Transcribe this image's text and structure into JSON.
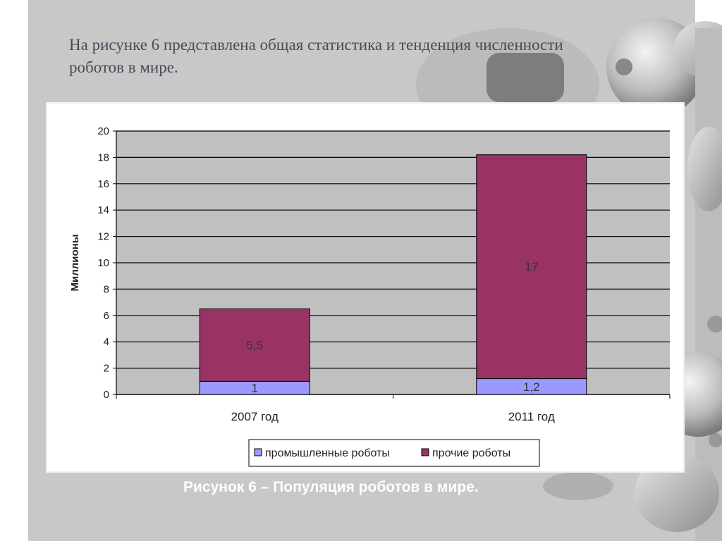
{
  "slide": {
    "intro_text": "На рисунке 6 представлена общая статистика и тенденция численности роботов в мире.",
    "caption": "Рисунок 6 – Популяция роботов в мире."
  },
  "colors": {
    "slide_background": "#c8c8c8",
    "plot_background": "#c0c0c0",
    "industrial": "#9999ff",
    "other": "#993366"
  },
  "chart_data": {
    "type": "bar",
    "stacked": true,
    "categories": [
      "2007 год",
      "2011 год"
    ],
    "series": [
      {
        "name": "промышленные роботы",
        "values": [
          1,
          1.2
        ],
        "labels": [
          "1",
          "1,2"
        ]
      },
      {
        "name": "прочие роботы",
        "values": [
          5.5,
          17
        ],
        "labels": [
          "5,5",
          "17"
        ]
      }
    ],
    "ylabel": "Миллионы",
    "ylim": [
      0,
      20
    ],
    "yticks": [
      0,
      2,
      4,
      6,
      8,
      10,
      12,
      14,
      16,
      18,
      20
    ],
    "grid": true,
    "legend": "bottom"
  }
}
